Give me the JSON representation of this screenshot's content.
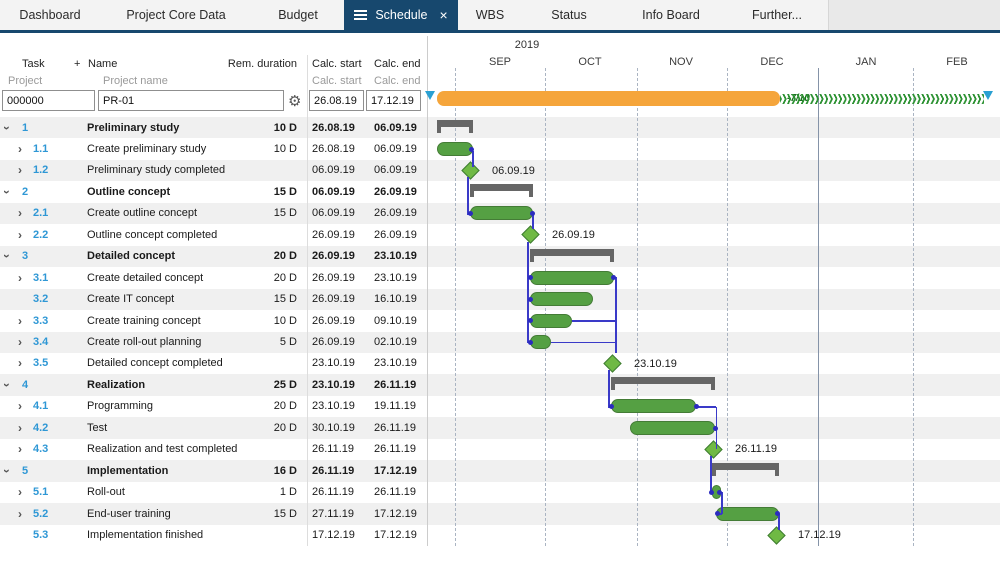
{
  "tabs": {
    "items": [
      {
        "label": "Dashboard",
        "active": false
      },
      {
        "label": "Project Core Data",
        "active": false
      },
      {
        "label": "Budget",
        "active": false
      },
      {
        "label": "Schedule",
        "active": true
      },
      {
        "label": "WBS",
        "active": false
      },
      {
        "label": "Status",
        "active": false
      },
      {
        "label": "Info Board",
        "active": false
      },
      {
        "label": "Further...",
        "active": false
      }
    ],
    "close_label": "×"
  },
  "icons": {
    "gear": "⚙",
    "close": "×",
    "chevron": "›"
  },
  "table": {
    "header": {
      "task": "Task",
      "add": "+",
      "name": "Name",
      "rem_duration": "Rem. duration",
      "calc_start": "Calc. start",
      "calc_end": "Calc. end"
    },
    "subheader": {
      "project": "Project",
      "project_name": "Project name",
      "calc_start": "Calc. start",
      "calc_end": "Calc. end"
    },
    "project_row": {
      "id": "000000",
      "name": "PR-01",
      "calc_start": "26.08.19",
      "calc_end": "17.12.19"
    },
    "rows": [
      {
        "id": "1",
        "name": "Preliminary study",
        "dur": "10 D",
        "start": "26.08.19",
        "end": "06.09.19",
        "group": true,
        "chevron": "down"
      },
      {
        "id": "1.1",
        "name": "Create preliminary study",
        "dur": "10 D",
        "start": "26.08.19",
        "end": "06.09.19",
        "group": false,
        "chevron": "right"
      },
      {
        "id": "1.2",
        "name": "Preliminary study completed",
        "dur": "",
        "start": "06.09.19",
        "end": "06.09.19",
        "group": false,
        "chevron": "right",
        "milestone_label": "06.09.19"
      },
      {
        "id": "2",
        "name": "Outline concept",
        "dur": "15 D",
        "start": "06.09.19",
        "end": "26.09.19",
        "group": true,
        "chevron": "down"
      },
      {
        "id": "2.1",
        "name": "Create outline concept",
        "dur": "15 D",
        "start": "06.09.19",
        "end": "26.09.19",
        "group": false,
        "chevron": "right"
      },
      {
        "id": "2.2",
        "name": "Outline concept completed",
        "dur": "",
        "start": "26.09.19",
        "end": "26.09.19",
        "group": false,
        "chevron": "right",
        "milestone_label": "26.09.19"
      },
      {
        "id": "3",
        "name": "Detailed concept",
        "dur": "20 D",
        "start": "26.09.19",
        "end": "23.10.19",
        "group": true,
        "chevron": "down"
      },
      {
        "id": "3.1",
        "name": "Create detailed concept",
        "dur": "20 D",
        "start": "26.09.19",
        "end": "23.10.19",
        "group": false,
        "chevron": "right"
      },
      {
        "id": "3.2",
        "name": "Create IT concept",
        "dur": "15 D",
        "start": "26.09.19",
        "end": "16.10.19",
        "group": false,
        "chevron": "none"
      },
      {
        "id": "3.3",
        "name": "Create training concept",
        "dur": "10 D",
        "start": "26.09.19",
        "end": "09.10.19",
        "group": false,
        "chevron": "right"
      },
      {
        "id": "3.4",
        "name": "Create roll-out planning",
        "dur": "5 D",
        "start": "26.09.19",
        "end": "02.10.19",
        "group": false,
        "chevron": "right"
      },
      {
        "id": "3.5",
        "name": "Detailed concept completed",
        "dur": "",
        "start": "23.10.19",
        "end": "23.10.19",
        "group": false,
        "chevron": "right",
        "milestone_label": "23.10.19"
      },
      {
        "id": "4",
        "name": "Realization",
        "dur": "25 D",
        "start": "23.10.19",
        "end": "26.11.19",
        "group": true,
        "chevron": "down"
      },
      {
        "id": "4.1",
        "name": "Programming",
        "dur": "20 D",
        "start": "23.10.19",
        "end": "19.11.19",
        "group": false,
        "chevron": "right"
      },
      {
        "id": "4.2",
        "name": "Test",
        "dur": "20 D",
        "start": "30.10.19",
        "end": "26.11.19",
        "group": false,
        "chevron": "right"
      },
      {
        "id": "4.3",
        "name": "Realization and test completed",
        "dur": "",
        "start": "26.11.19",
        "end": "26.11.19",
        "group": false,
        "chevron": "right",
        "milestone_label": "26.11.19"
      },
      {
        "id": "5",
        "name": "Implementation",
        "dur": "16 D",
        "start": "26.11.19",
        "end": "17.12.19",
        "group": true,
        "chevron": "down"
      },
      {
        "id": "5.1",
        "name": "Roll-out",
        "dur": "1 D",
        "start": "26.11.19",
        "end": "26.11.19",
        "group": false,
        "chevron": "right"
      },
      {
        "id": "5.2",
        "name": "End-user training",
        "dur": "15 D",
        "start": "27.11.19",
        "end": "17.12.19",
        "group": false,
        "chevron": "right"
      },
      {
        "id": "5.3",
        "name": "Implementation finished",
        "dur": "",
        "start": "17.12.19",
        "end": "17.12.19",
        "group": false,
        "chevron": "none",
        "milestone_label": "17.12.19"
      }
    ]
  },
  "gantt": {
    "year": "2019",
    "months": [
      "SEP",
      "OCT",
      "NOV",
      "DEC",
      "JAN",
      "FEB"
    ],
    "buffer_label": "-7/10",
    "project_bar": {
      "start": "26.08.19",
      "end": "17.12.19"
    }
  },
  "colors": {
    "accent_navy": "#17486e",
    "bar_green": "#55a043",
    "milestone_green": "#6fb944",
    "summary_gray": "#666666",
    "project_orange": "#f5a53b",
    "connector_blue": "#3a3ac8",
    "task_id_blue": "#2e97d5",
    "stripe_gray": "#f0f0f0",
    "marker_teal": "#2aa0d2"
  }
}
